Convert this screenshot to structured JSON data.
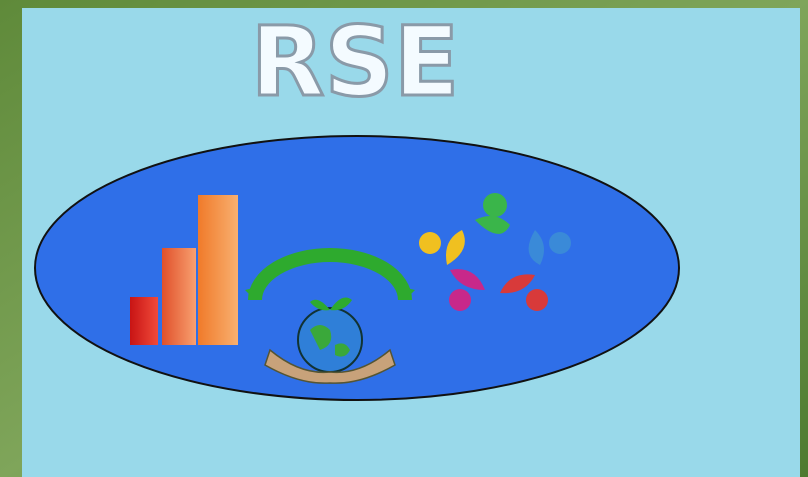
{
  "header": {
    "title": "RSE"
  }
}
